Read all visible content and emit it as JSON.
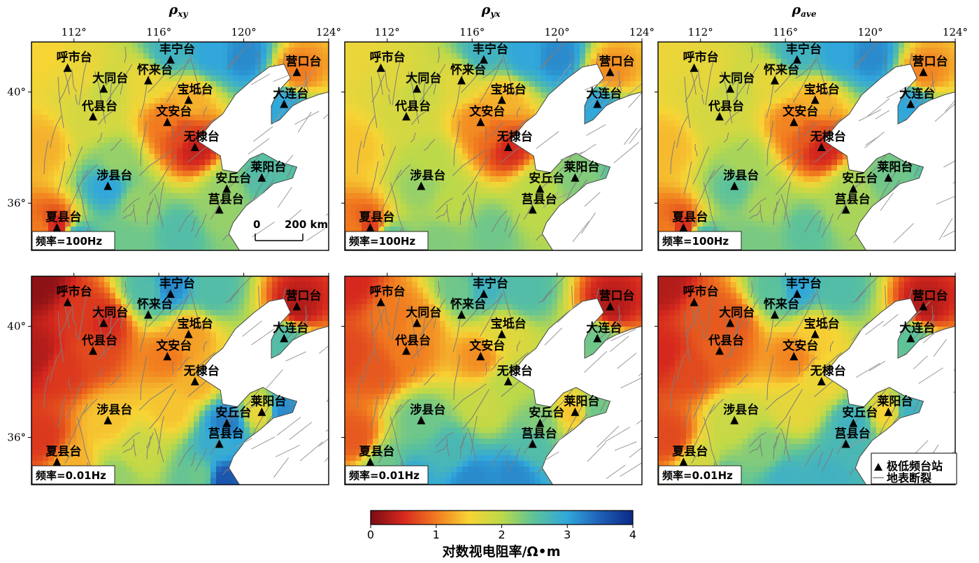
{
  "columns": [
    {
      "title_main": "ρ",
      "title_sub": "xy"
    },
    {
      "title_main": "ρ",
      "title_sub": "yx"
    },
    {
      "title_main": "ρ",
      "title_sub": "ave"
    }
  ],
  "lon_ticks": [
    "112°",
    "116°",
    "120°",
    "124°"
  ],
  "lat_ticks": [
    "40°",
    "36°"
  ],
  "frequencies": [
    "频率=100Hz",
    "频率=0.01Hz"
  ],
  "scale_bar": {
    "start": "0",
    "end": "200 km"
  },
  "stations": [
    {
      "name": "呼市台",
      "lon": 111.7,
      "lat": 40.85
    },
    {
      "name": "大同台",
      "lon": 113.4,
      "lat": 40.1
    },
    {
      "name": "怀来台",
      "lon": 115.5,
      "lat": 40.4
    },
    {
      "name": "丰宁台",
      "lon": 116.55,
      "lat": 41.15
    },
    {
      "name": "宝坻台",
      "lon": 117.4,
      "lat": 39.7
    },
    {
      "name": "代县台",
      "lon": 112.9,
      "lat": 39.1
    },
    {
      "name": "文安台",
      "lon": 116.4,
      "lat": 38.9
    },
    {
      "name": "无棣台",
      "lon": 117.7,
      "lat": 38.0
    },
    {
      "name": "营口台",
      "lon": 122.5,
      "lat": 40.7
    },
    {
      "name": "大连台",
      "lon": 121.9,
      "lat": 39.55
    },
    {
      "name": "莱阳台",
      "lon": 120.85,
      "lat": 36.9
    },
    {
      "name": "安丘台",
      "lon": 119.2,
      "lat": 36.5
    },
    {
      "name": "莒县台",
      "lon": 118.85,
      "lat": 35.75
    },
    {
      "name": "涉县台",
      "lon": 113.6,
      "lat": 36.6
    },
    {
      "name": "夏县台",
      "lon": 111.2,
      "lat": 35.1
    }
  ],
  "colorbar": {
    "ticks": [
      "0",
      "1",
      "2",
      "3",
      "4"
    ],
    "title": "对数视电阻率/Ω•m",
    "stops": [
      "#7a0c14",
      "#d6281e",
      "#f17b1f",
      "#f7d535",
      "#bcd94a",
      "#5cc29b",
      "#31a7db",
      "#1f5fb5",
      "#0a2a87"
    ]
  },
  "legend": {
    "station": "极低频台站",
    "fault": "地表断裂"
  }
}
